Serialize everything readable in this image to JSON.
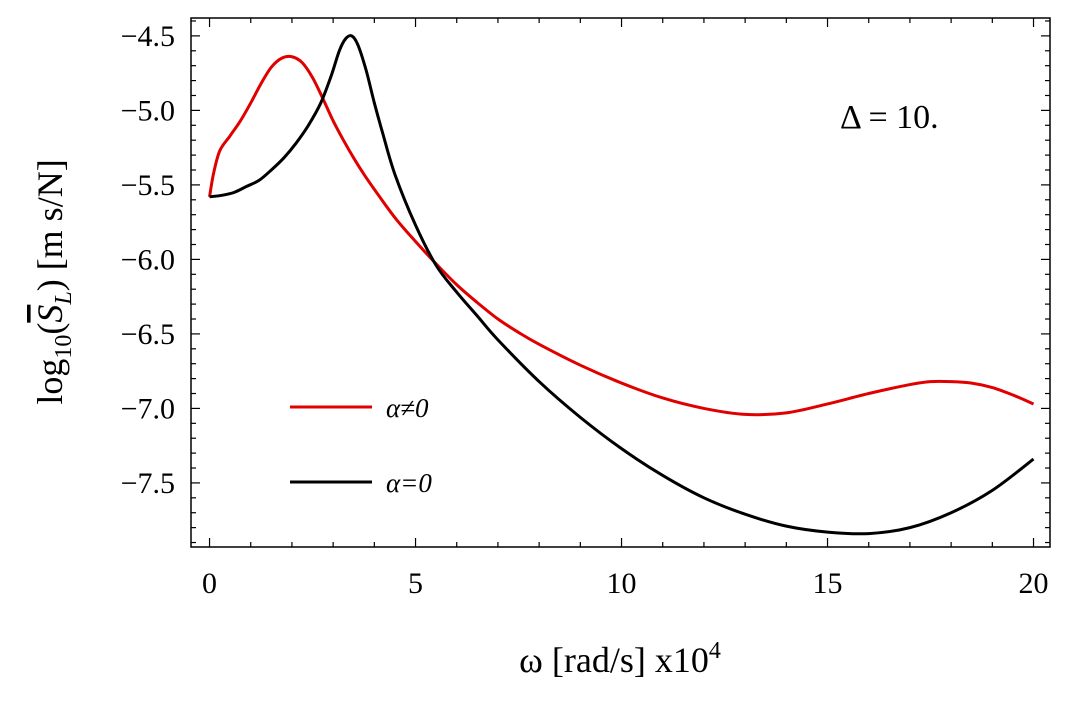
{
  "chart_data": {
    "type": "line",
    "xlabel": {
      "base": "ω [rad/s] x10",
      "sup": "4"
    },
    "ylabel": {
      "pre": "log",
      "sub1": "10",
      "mid": "(",
      "sym": "S",
      "sub2": "L",
      "post": ") [m s/N]"
    },
    "annotation": "Δ = 10.",
    "xlim": [
      -0.45,
      20.4
    ],
    "ylim": [
      -7.93,
      -4.38
    ],
    "xticks": [
      0,
      5,
      10,
      15,
      20
    ],
    "xtick_labels": [
      "0",
      "5",
      "10",
      "15",
      "20"
    ],
    "yticks": [
      -7.5,
      -7.0,
      -6.5,
      -6.0,
      -5.5,
      -5.0,
      -4.5
    ],
    "ytick_labels": [
      "−7.5",
      "−7.0",
      "−6.5",
      "−6.0",
      "−5.5",
      "−5.0",
      "−4.5"
    ],
    "legend_placement": "lower-left",
    "series": [
      {
        "name": "α≠0",
        "color": "#e00000",
        "x": [
          0,
          0.1,
          0.25,
          0.5,
          0.75,
          1.0,
          1.25,
          1.5,
          1.75,
          2.0,
          2.25,
          2.5,
          2.75,
          3.0,
          3.25,
          3.5,
          3.75,
          4.0,
          4.5,
          5.0,
          5.5,
          6.0,
          6.5,
          7.0,
          7.5,
          8.0,
          9.0,
          10.0,
          11.0,
          12.0,
          13.0,
          14.0,
          15.0,
          16.0,
          17.0,
          17.5,
          18.0,
          18.5,
          19.0,
          19.5,
          20.0
        ],
        "y": [
          -5.58,
          -5.42,
          -5.27,
          -5.17,
          -5.07,
          -4.95,
          -4.82,
          -4.71,
          -4.65,
          -4.64,
          -4.68,
          -4.78,
          -4.92,
          -5.07,
          -5.2,
          -5.32,
          -5.43,
          -5.53,
          -5.72,
          -5.88,
          -6.03,
          -6.17,
          -6.29,
          -6.4,
          -6.49,
          -6.57,
          -6.71,
          -6.83,
          -6.93,
          -7.0,
          -7.04,
          -7.03,
          -6.97,
          -6.9,
          -6.84,
          -6.82,
          -6.82,
          -6.83,
          -6.86,
          -6.91,
          -6.97
        ]
      },
      {
        "name": "α=0",
        "color": "#000000",
        "x": [
          0,
          0.3,
          0.6,
          0.9,
          1.2,
          1.5,
          1.8,
          2.1,
          2.4,
          2.7,
          2.95,
          3.15,
          3.3,
          3.45,
          3.6,
          3.8,
          4.0,
          4.2,
          4.5,
          5.0,
          5.5,
          6.0,
          6.5,
          7.0,
          8.0,
          9.0,
          10.0,
          11.0,
          12.0,
          13.0,
          14.0,
          15.0,
          16.0,
          17.0,
          18.0,
          19.0,
          20.0
        ],
        "y": [
          -5.58,
          -5.57,
          -5.55,
          -5.51,
          -5.47,
          -5.4,
          -5.32,
          -5.22,
          -5.1,
          -4.95,
          -4.77,
          -4.6,
          -4.52,
          -4.5,
          -4.56,
          -4.73,
          -4.95,
          -5.15,
          -5.43,
          -5.77,
          -6.04,
          -6.22,
          -6.38,
          -6.54,
          -6.82,
          -7.06,
          -7.27,
          -7.45,
          -7.6,
          -7.71,
          -7.79,
          -7.83,
          -7.84,
          -7.8,
          -7.7,
          -7.55,
          -7.34
        ]
      }
    ]
  }
}
